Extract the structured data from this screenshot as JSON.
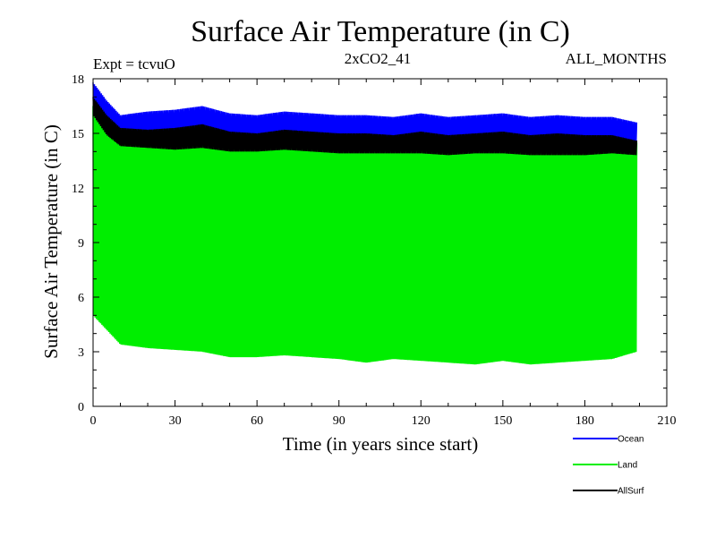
{
  "chart_data": {
    "type": "line",
    "title": "Surface Air Temperature (in C)",
    "annotations": {
      "left": "Expt = tcvuO",
      "center": "2xCO2_41",
      "right": "ALL_MONTHS"
    },
    "xlabel": "Time (in years since start)",
    "ylabel": "Surface Air Temperature (in C)",
    "xlim": [
      0,
      210
    ],
    "ylim": [
      0,
      18
    ],
    "xticks": [
      0,
      30,
      60,
      90,
      120,
      150,
      180,
      210
    ],
    "yticks": [
      0,
      3,
      6,
      9,
      12,
      15,
      18
    ],
    "xtick_labels": [
      "0",
      "30",
      "60",
      "90",
      "120",
      "150",
      "180",
      "210"
    ],
    "ytick_labels": [
      "0",
      "3",
      "6",
      "9",
      "12",
      "15",
      "18"
    ],
    "legend_position": "bottom-right-outside",
    "series": [
      {
        "name": "Ocean",
        "color": "#0000ff",
        "kind": "monthly seasonal cycle",
        "x_years": [
          0,
          5,
          10,
          20,
          30,
          40,
          50,
          60,
          70,
          80,
          90,
          100,
          110,
          120,
          130,
          140,
          150,
          160,
          170,
          180,
          190,
          199
        ],
        "max": [
          17.8,
          16.8,
          16.0,
          16.2,
          16.3,
          16.5,
          16.1,
          16.0,
          16.2,
          16.1,
          16.0,
          16.0,
          15.9,
          16.1,
          15.9,
          16.0,
          16.1,
          15.9,
          16.0,
          15.9,
          15.9,
          15.6
        ],
        "min": [
          16.8,
          15.4,
          14.9,
          14.9,
          14.8,
          14.9,
          14.7,
          14.6,
          14.7,
          14.7,
          14.6,
          14.6,
          14.6,
          14.6,
          14.5,
          14.6,
          14.6,
          14.5,
          14.5,
          14.5,
          14.5,
          14.4
        ]
      },
      {
        "name": "Land",
        "color": "#00ee00",
        "kind": "monthly seasonal cycle",
        "x_years": [
          0,
          5,
          10,
          20,
          30,
          40,
          50,
          60,
          70,
          80,
          90,
          100,
          110,
          120,
          130,
          140,
          150,
          160,
          170,
          180,
          190,
          199
        ],
        "max": [
          16.5,
          15.8,
          15.0,
          15.0,
          15.1,
          15.2,
          14.9,
          14.8,
          15.0,
          14.9,
          14.8,
          14.8,
          14.7,
          14.9,
          14.7,
          14.8,
          14.9,
          14.7,
          14.8,
          14.7,
          14.7,
          14.5
        ],
        "min": [
          5.0,
          4.2,
          3.4,
          3.2,
          3.1,
          3.0,
          2.7,
          2.7,
          2.8,
          2.7,
          2.6,
          2.4,
          2.6,
          2.5,
          2.4,
          2.3,
          2.5,
          2.3,
          2.4,
          2.5,
          2.6,
          3.0
        ]
      },
      {
        "name": "AllSurf",
        "color": "#000000",
        "kind": "monthly seasonal cycle",
        "x_years": [
          0,
          5,
          10,
          20,
          30,
          40,
          50,
          60,
          70,
          80,
          90,
          100,
          110,
          120,
          130,
          140,
          150,
          160,
          170,
          180,
          190,
          199
        ],
        "max": [
          17.0,
          16.0,
          15.3,
          15.2,
          15.3,
          15.5,
          15.1,
          15.0,
          15.2,
          15.1,
          15.0,
          15.0,
          14.9,
          15.1,
          14.9,
          15.0,
          15.1,
          14.9,
          15.0,
          14.9,
          14.9,
          14.6
        ],
        "min": [
          16.0,
          14.9,
          14.3,
          14.2,
          14.1,
          14.2,
          14.0,
          14.0,
          14.1,
          14.0,
          13.9,
          13.9,
          13.9,
          13.9,
          13.8,
          13.9,
          13.9,
          13.8,
          13.8,
          13.8,
          13.9,
          13.8
        ]
      }
    ]
  }
}
